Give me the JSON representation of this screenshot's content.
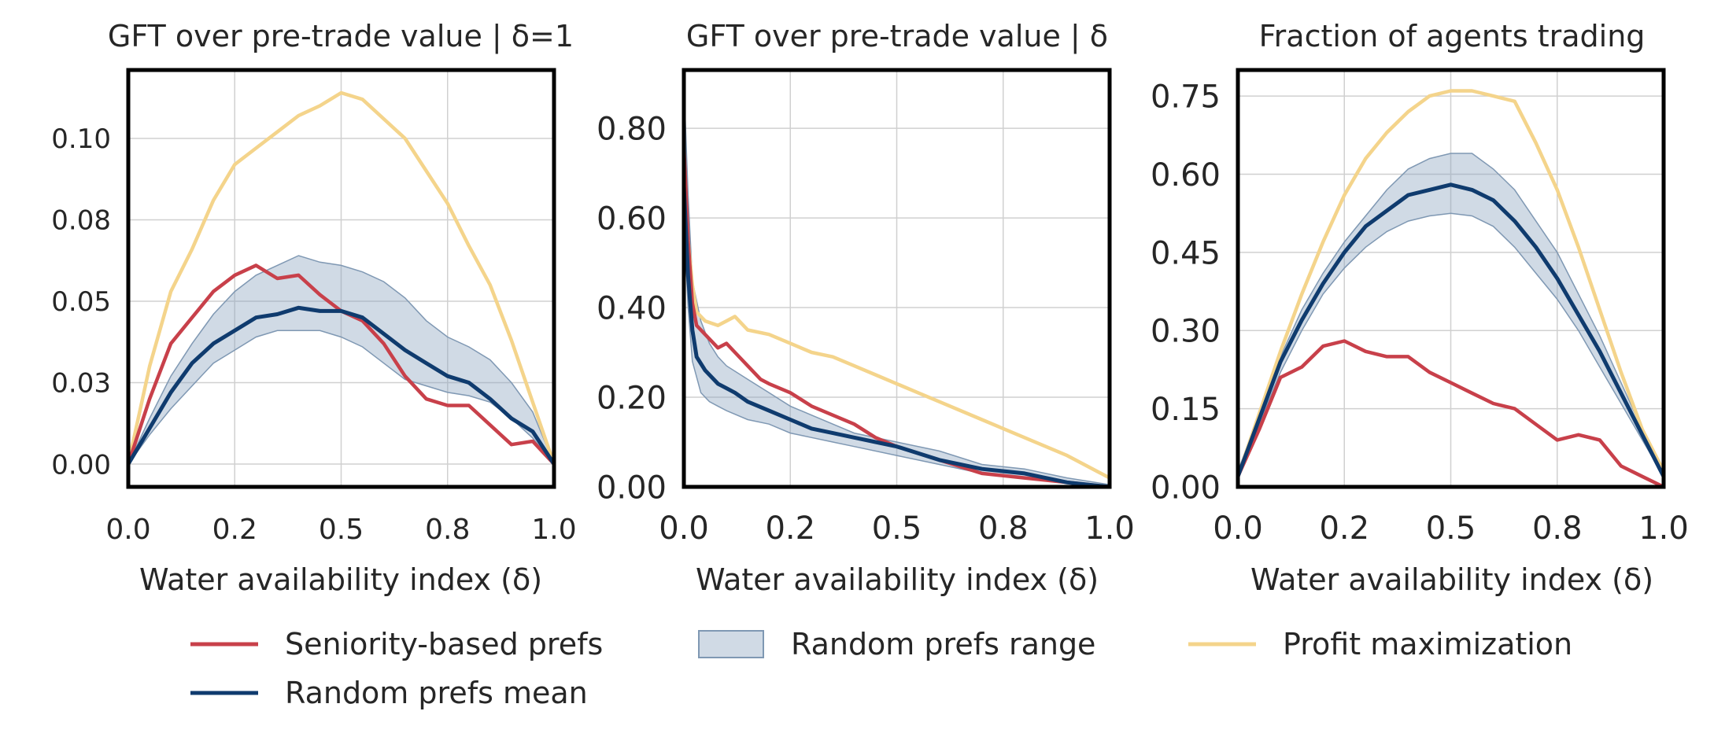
{
  "colors": {
    "seniority": "#c8404a",
    "random_mean": "#0f3b6e",
    "random_range_fill": "#8aa3bd",
    "random_range_edge": "#7f98b3",
    "profit": "#f4d48b",
    "grid": "#d0d0d0",
    "frame": "#000000"
  },
  "legend": {
    "placement": "bottom-center",
    "items": [
      {
        "key": "seniority",
        "label": "Seniority-based prefs",
        "kind": "line"
      },
      {
        "key": "range",
        "label": "Random prefs range",
        "kind": "patch"
      },
      {
        "key": "profit",
        "label": "Profit maximization",
        "kind": "line"
      },
      {
        "key": "mean",
        "label": "Random prefs mean",
        "kind": "line"
      }
    ]
  },
  "chart_data": [
    {
      "type": "line",
      "title": "GFT over pre-trade value | δ=1",
      "xlabel": "Water availability index (δ)",
      "ylabel": "",
      "grid": true,
      "xlim": [
        0,
        1
      ],
      "ylim": [
        -0.007,
        0.121
      ],
      "xticks": [
        0,
        0.25,
        0.5,
        0.75,
        1.0
      ],
      "xtick_labels": [
        "0.0",
        "0.2",
        "0.5",
        "0.8",
        "1.0"
      ],
      "yticks": [
        0,
        0.025,
        0.05,
        0.075,
        0.1
      ],
      "ytick_labels": [
        "0.00",
        "0.03",
        "0.05",
        "0.08",
        "0.10"
      ],
      "tick_font": "small",
      "series": [
        {
          "key": "range",
          "kind": "band",
          "x": [
            0,
            0.05,
            0.1,
            0.15,
            0.2,
            0.25,
            0.3,
            0.35,
            0.4,
            0.45,
            0.5,
            0.55,
            0.6,
            0.65,
            0.7,
            0.75,
            0.8,
            0.85,
            0.9,
            0.95,
            1.0
          ],
          "lower": [
            0,
            0.009,
            0.017,
            0.024,
            0.031,
            0.035,
            0.039,
            0.041,
            0.041,
            0.041,
            0.039,
            0.036,
            0.031,
            0.026,
            0.024,
            0.022,
            0.021,
            0.019,
            0.014,
            0.008,
            0
          ],
          "upper": [
            0,
            0.014,
            0.027,
            0.037,
            0.046,
            0.053,
            0.058,
            0.061,
            0.064,
            0.062,
            0.061,
            0.059,
            0.056,
            0.051,
            0.044,
            0.039,
            0.036,
            0.032,
            0.025,
            0.016,
            0
          ]
        },
        {
          "key": "profit",
          "kind": "line",
          "x": [
            0,
            0.05,
            0.1,
            0.15,
            0.2,
            0.25,
            0.3,
            0.35,
            0.4,
            0.45,
            0.5,
            0.55,
            0.6,
            0.65,
            0.7,
            0.75,
            0.8,
            0.85,
            0.9,
            0.95,
            1.0
          ],
          "y": [
            0,
            0.03,
            0.053,
            0.066,
            0.081,
            0.092,
            0.097,
            0.102,
            0.107,
            0.11,
            0.114,
            0.112,
            0.106,
            0.1,
            0.09,
            0.08,
            0.067,
            0.055,
            0.038,
            0.019,
            0
          ]
        },
        {
          "key": "seniority",
          "kind": "line",
          "x": [
            0,
            0.05,
            0.1,
            0.15,
            0.2,
            0.25,
            0.3,
            0.35,
            0.4,
            0.45,
            0.5,
            0.55,
            0.6,
            0.65,
            0.7,
            0.75,
            0.8,
            0.85,
            0.9,
            0.95,
            1.0
          ],
          "y": [
            0,
            0.02,
            0.037,
            0.045,
            0.053,
            0.058,
            0.061,
            0.057,
            0.058,
            0.052,
            0.047,
            0.044,
            0.037,
            0.027,
            0.02,
            0.018,
            0.018,
            0.012,
            0.006,
            0.007,
            0
          ]
        },
        {
          "key": "mean",
          "kind": "line",
          "x": [
            0,
            0.05,
            0.1,
            0.15,
            0.2,
            0.25,
            0.3,
            0.35,
            0.4,
            0.45,
            0.5,
            0.55,
            0.6,
            0.65,
            0.7,
            0.75,
            0.8,
            0.85,
            0.9,
            0.95,
            1.0
          ],
          "y": [
            0,
            0.011,
            0.022,
            0.031,
            0.037,
            0.041,
            0.045,
            0.046,
            0.048,
            0.047,
            0.047,
            0.045,
            0.04,
            0.035,
            0.031,
            0.027,
            0.025,
            0.02,
            0.014,
            0.01,
            0
          ]
        }
      ]
    },
    {
      "type": "line",
      "title": "GFT over pre-trade value | δ",
      "xlabel": "Water availability index (δ)",
      "ylabel": "",
      "grid": true,
      "xlim": [
        0,
        1
      ],
      "ylim": [
        0,
        0.93
      ],
      "xticks": [
        0,
        0.25,
        0.5,
        0.75,
        1.0
      ],
      "xtick_labels": [
        "0.0",
        "0.2",
        "0.5",
        "0.8",
        "1.0"
      ],
      "yticks": [
        0,
        0.2,
        0.4,
        0.6,
        0.8
      ],
      "ytick_labels": [
        "0.00",
        "0.20",
        "0.40",
        "0.60",
        "0.80"
      ],
      "tick_font": "large",
      "series": [
        {
          "key": "range",
          "kind": "band",
          "x": [
            0,
            0.01,
            0.02,
            0.04,
            0.06,
            0.08,
            0.1,
            0.15,
            0.2,
            0.25,
            0.3,
            0.35,
            0.4,
            0.5,
            0.6,
            0.7,
            0.8,
            0.9,
            1.0
          ],
          "lower": [
            0.6,
            0.4,
            0.28,
            0.21,
            0.19,
            0.18,
            0.17,
            0.15,
            0.14,
            0.12,
            0.11,
            0.1,
            0.09,
            0.07,
            0.05,
            0.03,
            0.02,
            0.01,
            0
          ],
          "upper": [
            0.9,
            0.65,
            0.46,
            0.37,
            0.32,
            0.29,
            0.27,
            0.24,
            0.21,
            0.18,
            0.16,
            0.14,
            0.12,
            0.1,
            0.08,
            0.05,
            0.04,
            0.02,
            0.005
          ]
        },
        {
          "key": "profit",
          "kind": "line",
          "x": [
            0,
            0.01,
            0.02,
            0.03,
            0.05,
            0.08,
            0.1,
            0.12,
            0.15,
            0.2,
            0.25,
            0.3,
            0.35,
            0.4,
            0.45,
            0.5,
            0.55,
            0.6,
            0.7,
            0.8,
            0.9,
            1.0
          ],
          "y": [
            0.65,
            0.55,
            0.45,
            0.39,
            0.37,
            0.36,
            0.37,
            0.38,
            0.35,
            0.34,
            0.32,
            0.3,
            0.29,
            0.27,
            0.25,
            0.23,
            0.21,
            0.19,
            0.15,
            0.11,
            0.07,
            0.02
          ]
        },
        {
          "key": "seniority",
          "kind": "line",
          "x": [
            0,
            0.01,
            0.02,
            0.03,
            0.05,
            0.08,
            0.1,
            0.12,
            0.15,
            0.18,
            0.2,
            0.25,
            0.3,
            0.35,
            0.4,
            0.45,
            0.5,
            0.6,
            0.7,
            0.8,
            0.9,
            1.0
          ],
          "y": [
            0.76,
            0.55,
            0.41,
            0.36,
            0.34,
            0.31,
            0.32,
            0.3,
            0.27,
            0.24,
            0.23,
            0.21,
            0.18,
            0.16,
            0.14,
            0.11,
            0.09,
            0.06,
            0.03,
            0.02,
            0.01,
            0
          ]
        },
        {
          "key": "mean",
          "kind": "line",
          "x": [
            0,
            0.01,
            0.02,
            0.03,
            0.05,
            0.08,
            0.1,
            0.12,
            0.15,
            0.2,
            0.25,
            0.3,
            0.35,
            0.4,
            0.45,
            0.5,
            0.6,
            0.7,
            0.8,
            0.9,
            1.0
          ],
          "y": [
            0.67,
            0.47,
            0.35,
            0.29,
            0.26,
            0.23,
            0.22,
            0.21,
            0.19,
            0.17,
            0.15,
            0.13,
            0.12,
            0.11,
            0.1,
            0.09,
            0.06,
            0.04,
            0.03,
            0.01,
            0
          ]
        }
      ]
    },
    {
      "type": "line",
      "title": "Fraction of agents trading",
      "xlabel": "Water availability index (δ)",
      "ylabel": "",
      "grid": true,
      "xlim": [
        0,
        1
      ],
      "ylim": [
        0,
        0.8
      ],
      "xticks": [
        0,
        0.25,
        0.5,
        0.75,
        1.0
      ],
      "xtick_labels": [
        "0.0",
        "0.2",
        "0.5",
        "0.8",
        "1.0"
      ],
      "yticks": [
        0,
        0.15,
        0.3,
        0.45,
        0.6,
        0.75
      ],
      "ytick_labels": [
        "0.00",
        "0.15",
        "0.30",
        "0.45",
        "0.60",
        "0.75"
      ],
      "tick_font": "large",
      "series": [
        {
          "key": "range",
          "kind": "band",
          "x": [
            0,
            0.05,
            0.1,
            0.15,
            0.2,
            0.25,
            0.3,
            0.35,
            0.4,
            0.45,
            0.5,
            0.55,
            0.6,
            0.65,
            0.7,
            0.75,
            0.8,
            0.85,
            0.9,
            0.95,
            1.0
          ],
          "lower": [
            0.02,
            0.12,
            0.22,
            0.3,
            0.37,
            0.42,
            0.46,
            0.49,
            0.51,
            0.52,
            0.525,
            0.52,
            0.5,
            0.46,
            0.41,
            0.36,
            0.3,
            0.23,
            0.16,
            0.09,
            0.02
          ],
          "upper": [
            0.03,
            0.14,
            0.25,
            0.34,
            0.41,
            0.47,
            0.52,
            0.57,
            0.61,
            0.63,
            0.64,
            0.64,
            0.61,
            0.57,
            0.51,
            0.45,
            0.37,
            0.29,
            0.2,
            0.11,
            0.03
          ]
        },
        {
          "key": "profit",
          "kind": "line",
          "x": [
            0,
            0.05,
            0.1,
            0.15,
            0.2,
            0.25,
            0.3,
            0.35,
            0.4,
            0.45,
            0.5,
            0.55,
            0.6,
            0.65,
            0.7,
            0.75,
            0.8,
            0.85,
            0.9,
            0.95,
            1.0
          ],
          "y": [
            0.02,
            0.14,
            0.26,
            0.37,
            0.47,
            0.56,
            0.63,
            0.68,
            0.72,
            0.75,
            0.76,
            0.76,
            0.75,
            0.74,
            0.66,
            0.57,
            0.46,
            0.34,
            0.22,
            0.11,
            0.03
          ]
        },
        {
          "key": "seniority",
          "kind": "line",
          "x": [
            0,
            0.05,
            0.1,
            0.15,
            0.2,
            0.25,
            0.3,
            0.35,
            0.4,
            0.45,
            0.5,
            0.55,
            0.6,
            0.65,
            0.7,
            0.75,
            0.8,
            0.85,
            0.9,
            0.95,
            1.0
          ],
          "y": [
            0.02,
            0.11,
            0.21,
            0.23,
            0.27,
            0.28,
            0.26,
            0.25,
            0.25,
            0.22,
            0.2,
            0.18,
            0.16,
            0.15,
            0.12,
            0.09,
            0.1,
            0.09,
            0.04,
            0.02,
            0
          ]
        },
        {
          "key": "mean",
          "kind": "line",
          "x": [
            0,
            0.05,
            0.1,
            0.15,
            0.2,
            0.25,
            0.3,
            0.35,
            0.4,
            0.45,
            0.5,
            0.55,
            0.6,
            0.65,
            0.7,
            0.75,
            0.8,
            0.85,
            0.9,
            0.95,
            1.0
          ],
          "y": [
            0.02,
            0.13,
            0.24,
            0.32,
            0.39,
            0.45,
            0.5,
            0.53,
            0.56,
            0.57,
            0.58,
            0.57,
            0.55,
            0.51,
            0.46,
            0.4,
            0.33,
            0.26,
            0.18,
            0.1,
            0.02
          ]
        }
      ]
    }
  ]
}
